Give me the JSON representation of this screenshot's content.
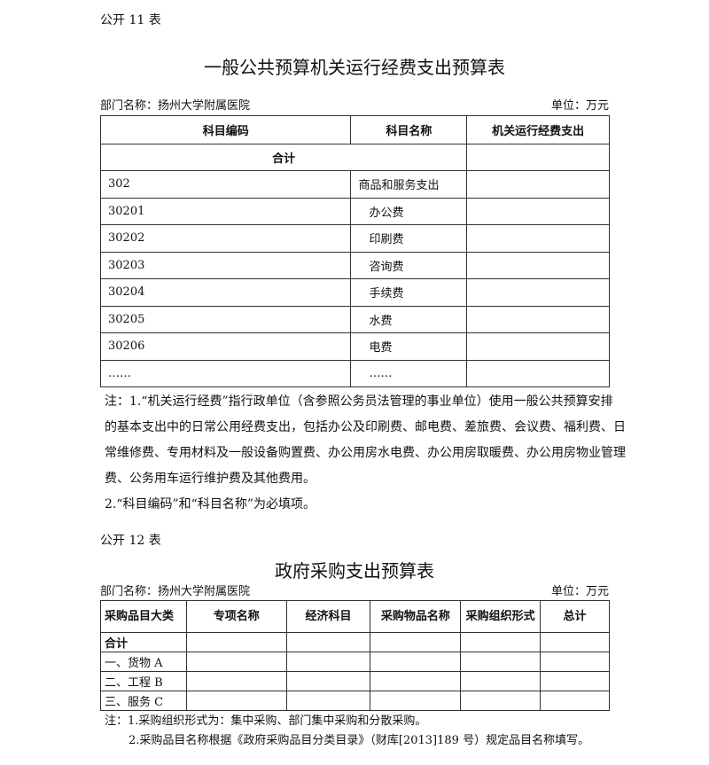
{
  "table11": {
    "label": "公开 11 表",
    "title": "一般公共预算机关运行经费支出预算表",
    "dept": "部门名称：扬州大学附属医院",
    "unit": "单位：万元",
    "headers": [
      "科目编码",
      "科目名称",
      "机关运行经费支出"
    ],
    "total": "合计",
    "rows": [
      {
        "code": "302",
        "name": "商品和服务支出"
      },
      {
        "code": "30201",
        "name": "办公费"
      },
      {
        "code": "30202",
        "name": "印刷费"
      },
      {
        "code": "30203",
        "name": "咨询费"
      },
      {
        "code": "30204",
        "name": "手续费"
      },
      {
        "code": "30205",
        "name": "水费"
      },
      {
        "code": "30206",
        "name": "电费"
      },
      {
        "code": "……",
        "name": "……"
      }
    ],
    "notes": [
      "注：1.“机关运行经费”指行政单位（含参照公务员法管理的事业单位）使用一般公共预算安排",
      "的基本支出中的日常公用经费支出，包括办公及印刷费、邮电费、差旅费、会议费、福利费、日",
      "常维修费、专用材料及一般设备购置费、办公用房水电费、办公用房取暖费、办公用房物业管理",
      "费、公务用车运行维护费及其他费用。",
      "2.“科目编码”和“科目名称”为必填项。"
    ]
  },
  "table12": {
    "label": "公开 12 表",
    "title": "政府采购支出预算表",
    "dept": "部门名称：扬州大学附属医院",
    "unit": "单位：万元",
    "headers": [
      "采购品目大类",
      "专项名称",
      "经济科目",
      "采购物品名称",
      "采购组织形式",
      "总计"
    ],
    "rows": [
      "合计",
      "一、货物 A",
      "二、工程 B",
      "三、服务 C"
    ],
    "notes": [
      "注：1.采购组织形式为：集中采购、部门集中采购和分散采购。",
      "2.采购品目名称根据《政府采购品目分类目录》（财库[2013]189 号）规定品目名称填写。"
    ]
  }
}
